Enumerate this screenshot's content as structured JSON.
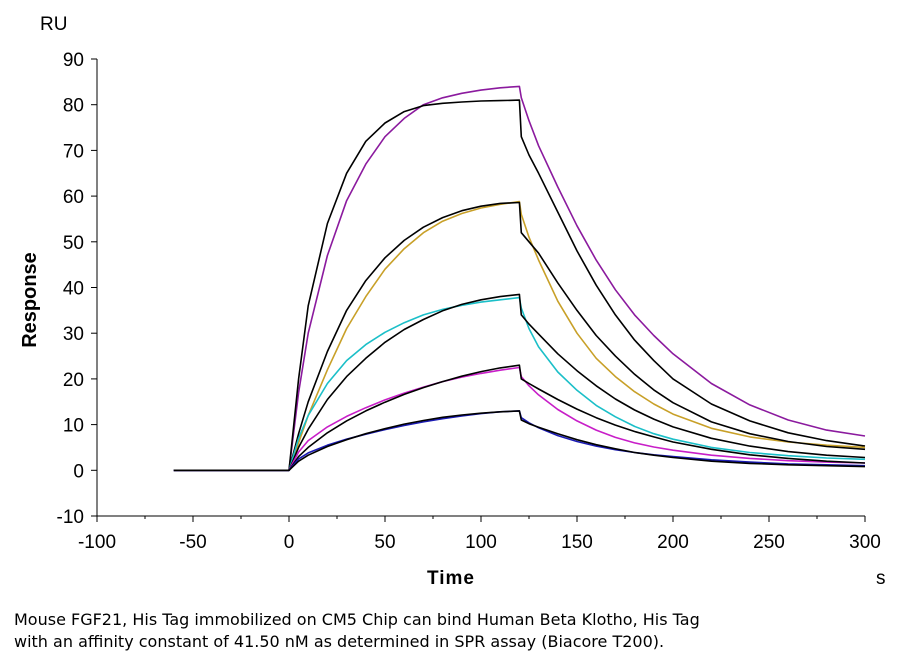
{
  "chart_data": {
    "type": "line",
    "title": "",
    "xlabel": "Time",
    "xunit": "s",
    "ylabel": "Response",
    "yunit": "RU",
    "xlim": [
      -100,
      300
    ],
    "ylim": [
      -10,
      90
    ],
    "x_ticks": [
      -100,
      -50,
      0,
      50,
      100,
      150,
      200,
      250,
      300
    ],
    "y_ticks": [
      -10,
      0,
      10,
      20,
      30,
      40,
      50,
      60,
      70,
      80,
      90
    ],
    "grid": false,
    "legend": "none",
    "series": [
      {
        "color": "#8B1A9E",
        "x": [
          -60,
          0,
          5,
          10,
          20,
          30,
          40,
          50,
          60,
          70,
          80,
          90,
          100,
          110,
          120,
          121,
          125,
          130,
          140,
          150,
          160,
          170,
          180,
          190,
          200,
          220,
          240,
          260,
          280,
          300
        ],
        "y": [
          0,
          0,
          17,
          30,
          47,
          59,
          67,
          73,
          77,
          80,
          81.5,
          82.5,
          83.2,
          83.7,
          84,
          81.5,
          76.5,
          71,
          62,
          53.5,
          46,
          39.5,
          34,
          29.5,
          25.5,
          19,
          14.3,
          11,
          8.8,
          7.5
        ]
      },
      {
        "color": "#000000",
        "x": [
          -60,
          0,
          5,
          10,
          20,
          30,
          40,
          50,
          60,
          70,
          80,
          90,
          100,
          110,
          120,
          121,
          125,
          130,
          140,
          150,
          160,
          170,
          180,
          190,
          200,
          220,
          240,
          260,
          280,
          300
        ],
        "y": [
          0,
          0,
          20,
          36,
          54,
          65,
          72,
          76,
          78.5,
          79.8,
          80.3,
          80.6,
          80.8,
          80.9,
          81,
          73,
          69,
          65,
          56.5,
          48,
          40.5,
          34,
          28.5,
          24,
          20,
          14.5,
          10.8,
          8.2,
          6.5,
          5.3
        ]
      },
      {
        "color": "#C8A028",
        "x": [
          -60,
          0,
          5,
          10,
          20,
          30,
          40,
          50,
          60,
          70,
          80,
          90,
          100,
          110,
          120,
          121,
          125,
          130,
          140,
          150,
          160,
          170,
          180,
          190,
          200,
          220,
          240,
          260,
          280,
          300
        ],
        "y": [
          0,
          0,
          6,
          12,
          22,
          31,
          38,
          44,
          48.5,
          52,
          54.5,
          56.2,
          57.4,
          58.2,
          58.8,
          56,
          51,
          46,
          37,
          30,
          24.5,
          20.5,
          17.2,
          14.5,
          12.3,
          9.2,
          7.3,
          6.2,
          5.5,
          5
        ]
      },
      {
        "color": "#000000",
        "x": [
          -60,
          0,
          5,
          10,
          20,
          30,
          40,
          50,
          60,
          70,
          80,
          90,
          100,
          110,
          120,
          121,
          125,
          130,
          140,
          150,
          160,
          170,
          180,
          190,
          200,
          220,
          240,
          260,
          280,
          300
        ],
        "y": [
          0,
          0,
          8,
          15,
          26,
          35,
          41.5,
          46.5,
          50.3,
          53.2,
          55.3,
          56.8,
          57.8,
          58.4,
          58.6,
          52,
          50,
          47.5,
          41,
          35,
          29.5,
          25,
          21,
          17.6,
          14.8,
          10.6,
          8,
          6.3,
          5.2,
          4.6
        ]
      },
      {
        "color": "#1BBFC8",
        "x": [
          -60,
          0,
          5,
          10,
          20,
          30,
          40,
          50,
          60,
          70,
          80,
          90,
          100,
          110,
          120,
          121,
          125,
          130,
          140,
          150,
          160,
          170,
          180,
          190,
          200,
          220,
          240,
          260,
          280,
          300
        ],
        "y": [
          0,
          0,
          7,
          12,
          19,
          24,
          27.5,
          30.2,
          32.3,
          34,
          35.2,
          36.1,
          36.8,
          37.3,
          37.8,
          35.5,
          31,
          27,
          21.5,
          17.5,
          14.2,
          11.7,
          9.6,
          8,
          6.8,
          5,
          3.9,
          3.2,
          2.7,
          2.4
        ]
      },
      {
        "color": "#000000",
        "x": [
          -60,
          0,
          5,
          10,
          20,
          30,
          40,
          50,
          60,
          70,
          80,
          90,
          100,
          110,
          120,
          121,
          125,
          130,
          140,
          150,
          160,
          170,
          180,
          190,
          200,
          220,
          240,
          260,
          280,
          300
        ],
        "y": [
          0,
          0,
          5,
          9,
          15.5,
          20.5,
          24.5,
          28,
          30.8,
          33,
          34.9,
          36.3,
          37.3,
          38,
          38.5,
          34,
          32,
          29.8,
          25.5,
          21.8,
          18.5,
          15.6,
          13.2,
          11.2,
          9.5,
          7,
          5.3,
          4.1,
          3.3,
          2.8
        ]
      },
      {
        "color": "#C81EC8",
        "x": [
          -60,
          0,
          5,
          10,
          20,
          30,
          40,
          50,
          60,
          70,
          80,
          90,
          100,
          110,
          120,
          121,
          125,
          130,
          140,
          150,
          160,
          170,
          180,
          190,
          200,
          220,
          240,
          260,
          280,
          300
        ],
        "y": [
          0,
          0,
          4,
          6.5,
          9.5,
          11.8,
          13.7,
          15.4,
          16.9,
          18.2,
          19.4,
          20.4,
          21.2,
          21.9,
          22.5,
          20.5,
          18.5,
          16.5,
          13.3,
          10.8,
          8.8,
          7.2,
          6,
          5.1,
          4.4,
          3.3,
          2.6,
          2.1,
          1.8,
          1.6
        ]
      },
      {
        "color": "#000000",
        "x": [
          -60,
          0,
          5,
          10,
          20,
          30,
          40,
          50,
          60,
          70,
          80,
          90,
          100,
          110,
          120,
          121,
          125,
          130,
          140,
          150,
          160,
          170,
          180,
          190,
          200,
          220,
          240,
          260,
          280,
          300
        ],
        "y": [
          0,
          0,
          3,
          5,
          8.2,
          10.8,
          13,
          14.9,
          16.6,
          18.1,
          19.4,
          20.6,
          21.6,
          22.4,
          23,
          20,
          19,
          17.8,
          15.5,
          13.4,
          11.5,
          9.9,
          8.5,
          7.3,
          6.2,
          4.6,
          3.4,
          2.6,
          2,
          1.6
        ]
      },
      {
        "color": "#1A1AB4",
        "x": [
          -60,
          0,
          5,
          10,
          20,
          30,
          40,
          50,
          60,
          70,
          80,
          90,
          100,
          110,
          120,
          121,
          125,
          130,
          140,
          150,
          160,
          170,
          180,
          190,
          200,
          220,
          240,
          260,
          280,
          300
        ],
        "y": [
          0,
          0,
          2.5,
          3.8,
          5.5,
          6.8,
          7.9,
          8.9,
          9.8,
          10.6,
          11.3,
          11.9,
          12.4,
          12.8,
          13,
          11.5,
          10.4,
          9.3,
          7.6,
          6.3,
          5.3,
          4.5,
          3.9,
          3.4,
          3,
          2.3,
          1.8,
          1.4,
          1.2,
          1
        ]
      },
      {
        "color": "#000000",
        "x": [
          -60,
          0,
          5,
          10,
          20,
          30,
          40,
          50,
          60,
          70,
          80,
          90,
          100,
          110,
          120,
          121,
          125,
          130,
          140,
          150,
          160,
          170,
          180,
          190,
          200,
          220,
          240,
          260,
          280,
          300
        ],
        "y": [
          0,
          0,
          2,
          3.3,
          5.2,
          6.7,
          8,
          9.1,
          10.1,
          10.9,
          11.6,
          12.1,
          12.5,
          12.8,
          13,
          11,
          10.2,
          9.4,
          8,
          6.7,
          5.6,
          4.7,
          3.9,
          3.3,
          2.8,
          2,
          1.5,
          1.2,
          1,
          0.8
        ]
      }
    ]
  },
  "caption": {
    "line1": "Mouse FGF21, His Tag immobilized on CM5 Chip can bind Human Beta Klotho, His Tag",
    "line2": "with an affinity constant of 41.50 nM as determined in SPR assay (Biacore T200)."
  }
}
